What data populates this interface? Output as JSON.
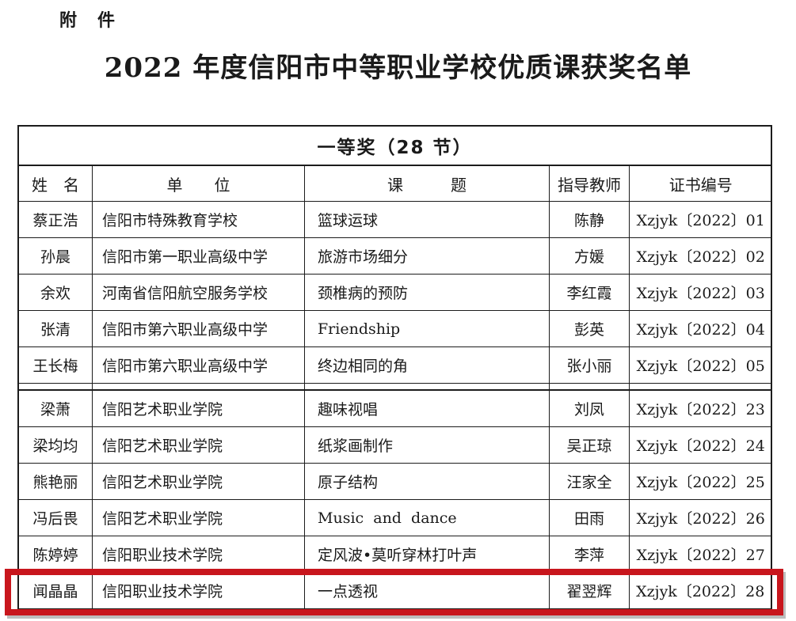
{
  "page": {
    "attachment_label": "附　件",
    "title": "2022 年度信阳市中等职业学校优质课获奖名单"
  },
  "table": {
    "award_band": "一等奖（28 节）",
    "columns": {
      "name": "姓　名",
      "unit": "单　　位",
      "topic": "课　　　题",
      "teacher": "指导教师",
      "cert": "证书编号"
    },
    "rows": [
      {
        "name": "蔡正浩",
        "unit": "信阳市特殊教育学校",
        "topic": "篮球运球",
        "teacher": "陈静",
        "cert": "Xzjyk〔2022〕01"
      },
      {
        "name": "孙晨",
        "unit": "信阳市第一职业高级中学",
        "topic": "旅游市场细分",
        "teacher": "方媛",
        "cert": "Xzjyk〔2022〕02"
      },
      {
        "name": "余欢",
        "unit": "河南省信阳航空服务学校",
        "topic": "颈椎病的预防",
        "teacher": "李红霞",
        "cert": "Xzjyk〔2022〕03"
      },
      {
        "name": "张清",
        "unit": "信阳市第六职业高级中学",
        "topic": "Friendship",
        "teacher": "彭英",
        "cert": "Xzjyk〔2022〕04"
      },
      {
        "name": "王长梅",
        "unit": "信阳市第六职业高级中学",
        "topic": "终边相同的角",
        "teacher": "张小丽",
        "cert": "Xzjyk〔2022〕05"
      },
      {
        "name": "梁萧",
        "unit": "信阳艺术职业学院",
        "topic": "趣味视唱",
        "teacher": "刘凤",
        "cert": "Xzjyk〔2022〕23"
      },
      {
        "name": "梁均均",
        "unit": "信阳艺术职业学院",
        "topic": "纸浆画制作",
        "teacher": "吴正琼",
        "cert": "Xzjyk〔2022〕24"
      },
      {
        "name": "熊艳丽",
        "unit": "信阳艺术职业学院",
        "topic": "原子结构",
        "teacher": "汪家全",
        "cert": "Xzjyk〔2022〕25"
      },
      {
        "name": "冯后畏",
        "unit": "信阳艺术职业学院",
        "topic": "Music  and  dance",
        "teacher": "田雨",
        "cert": "Xzjyk〔2022〕26"
      },
      {
        "name": "陈婷婷",
        "unit": "信阳职业技术学院",
        "topic": "定风波•莫听穿林打叶声",
        "teacher": "李萍",
        "cert": "Xzjyk〔2022〕27"
      },
      {
        "name": "闻晶晶",
        "unit": "信阳职业技术学院",
        "topic": "一点透视",
        "teacher": "翟翌辉",
        "cert": "Xzjyk〔2022〕28"
      }
    ],
    "highlight_row_index": 10
  },
  "colors": {
    "highlight_border": "#C8161D",
    "table_border": "#1c1c1c"
  }
}
